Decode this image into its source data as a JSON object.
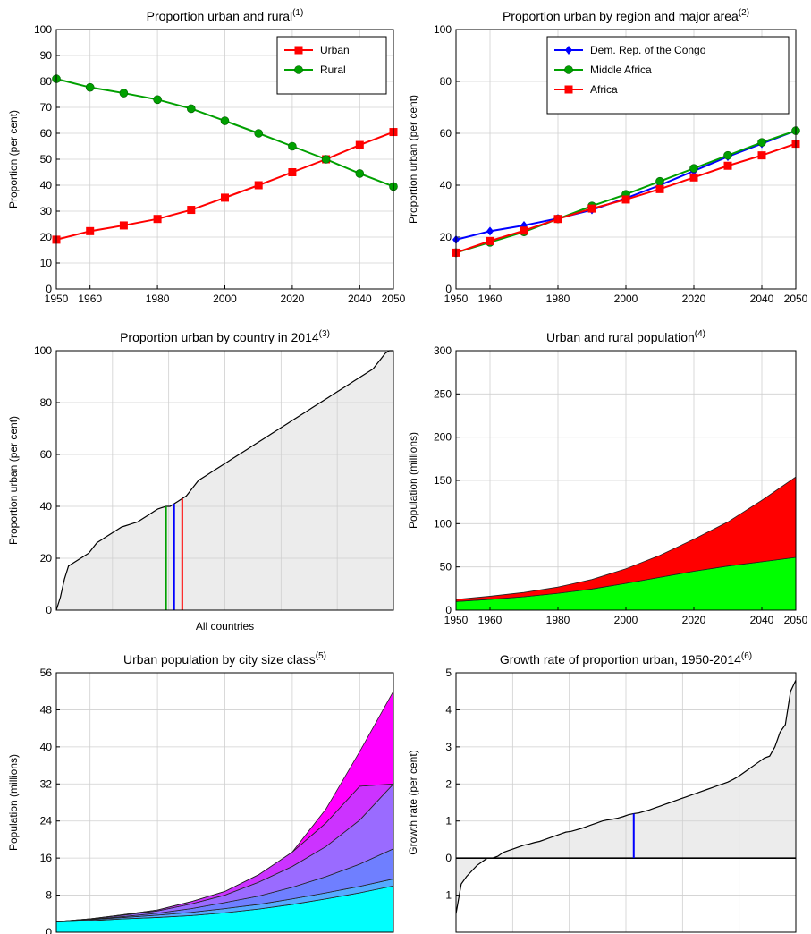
{
  "colors": {
    "urban": "#ff0000",
    "rural": "#00a000",
    "drc": "#0000ff",
    "middle_africa": "#00a000",
    "africa": "#ff0000",
    "area_rural": "#00ff00",
    "area_urban": "#ff0000",
    "area_gray": "#ececec",
    "size_classes": [
      "#00ffff",
      "#55aaff",
      "#6f7fff",
      "#9a6bff",
      "#cc33ff",
      "#ff00ff"
    ]
  },
  "chart_data": [
    {
      "id": "c1",
      "type": "line",
      "title": "Proportion urban and rural",
      "title_sup": "(1)",
      "xlabel": "",
      "ylabel": "Proportion (per cent)",
      "xlim": [
        1950,
        2050
      ],
      "ylim": [
        0,
        100
      ],
      "xticks": [
        1950,
        1960,
        1980,
        2000,
        2020,
        2040,
        2050
      ],
      "yticks": [
        0,
        10,
        20,
        30,
        40,
        50,
        60,
        70,
        80,
        90,
        100
      ],
      "grid": true,
      "legend": "top-right",
      "x": [
        1950,
        1960,
        1970,
        1980,
        1990,
        2000,
        2010,
        2020,
        2030,
        2040,
        2050
      ],
      "series": [
        {
          "name": "Urban",
          "color": "#ff0000",
          "marker": "square",
          "values": [
            19,
            22.3,
            24.5,
            27,
            30.5,
            35.2,
            40,
            45,
            50,
            55.5,
            60.5
          ]
        },
        {
          "name": "Rural",
          "color": "#00a000",
          "marker": "circle",
          "values": [
            81,
            77.7,
            75.5,
            73,
            69.5,
            64.8,
            60,
            55,
            50,
            44.5,
            39.5
          ]
        }
      ]
    },
    {
      "id": "c2",
      "type": "line",
      "title": "Proportion urban by region and major area",
      "title_sup": "(2)",
      "xlabel": "",
      "ylabel": "Proportion urban (per cent)",
      "xlim": [
        1950,
        2050
      ],
      "ylim": [
        0,
        100
      ],
      "xticks": [
        1950,
        1960,
        1980,
        2000,
        2020,
        2040,
        2050
      ],
      "yticks": [
        0,
        20,
        40,
        60,
        80,
        100
      ],
      "grid": true,
      "legend": "top-right",
      "x": [
        1950,
        1960,
        1970,
        1980,
        1990,
        2000,
        2010,
        2020,
        2030,
        2040,
        2050
      ],
      "series": [
        {
          "name": "Dem. Rep. of the Congo",
          "color": "#0000ff",
          "marker": "diamond",
          "values": [
            19,
            22.3,
            24.5,
            27.2,
            30.5,
            35,
            40,
            45.5,
            51,
            56,
            61
          ]
        },
        {
          "name": "Middle Africa",
          "color": "#00a000",
          "marker": "circle",
          "values": [
            14,
            18,
            22,
            27,
            32,
            36.5,
            41.5,
            46.5,
            51.5,
            56.5,
            61
          ]
        },
        {
          "name": "Africa",
          "color": "#ff0000",
          "marker": "square",
          "values": [
            14,
            18.5,
            22.5,
            27,
            31,
            34.5,
            38.5,
            43,
            47.5,
            51.5,
            56
          ]
        }
      ]
    },
    {
      "id": "c3",
      "type": "area",
      "title": "Proportion urban by country in 2014",
      "title_sup": "(3)",
      "xlabel": "All countries",
      "ylabel": "Proportion urban (per cent)",
      "ylim": [
        0,
        100
      ],
      "yticks": [
        0,
        20,
        40,
        60,
        80,
        100
      ],
      "grid": true,
      "profile": [
        0,
        5,
        12,
        17,
        18,
        19,
        20,
        21,
        22,
        24,
        26,
        27,
        28,
        29,
        30,
        31,
        32,
        32.5,
        33,
        33.5,
        34,
        35,
        36,
        37,
        38,
        39,
        39.5,
        40,
        40,
        41,
        42,
        43,
        44,
        46,
        48,
        50,
        51,
        52,
        53,
        54,
        55,
        56,
        57,
        58,
        59,
        60,
        61,
        62,
        63,
        64,
        65,
        66,
        67,
        68,
        69,
        70,
        71,
        72,
        73,
        74,
        75,
        76,
        77,
        78,
        79,
        80,
        81,
        82,
        83,
        84,
        85,
        86,
        87,
        88,
        89,
        90,
        91,
        92,
        93,
        95,
        97,
        99,
        100,
        100
      ],
      "markers": [
        {
          "label": "Middle Africa",
          "color": "#00a000",
          "index": 27,
          "value": 40
        },
        {
          "label": "Dem. Rep. of the Congo",
          "color": "#0000ff",
          "index": 29,
          "value": 41
        },
        {
          "label": "Africa",
          "color": "#ff0000",
          "index": 31,
          "value": 43
        }
      ]
    },
    {
      "id": "c4",
      "type": "area",
      "title": "Urban and rural population",
      "title_sup": "(4)",
      "xlabel": "",
      "ylabel": "Population (millions)",
      "xlim": [
        1950,
        2050
      ],
      "ylim": [
        0,
        300
      ],
      "xticks": [
        1950,
        1960,
        1980,
        2000,
        2020,
        2040,
        2050
      ],
      "yticks": [
        0,
        50,
        100,
        150,
        200,
        250,
        300
      ],
      "grid": true,
      "x": [
        1950,
        1960,
        1970,
        1980,
        1990,
        2000,
        2010,
        2020,
        2030,
        2040,
        2050
      ],
      "series": [
        {
          "name": "Rural",
          "color": "#00ff00",
          "values": [
            10,
            12.5,
            15.5,
            19.5,
            24.5,
            31,
            38,
            45,
            51,
            56,
            61
          ]
        },
        {
          "name": "Urban",
          "color": "#ff0000",
          "values": [
            2.4,
            3.6,
            5,
            7.2,
            11,
            16.9,
            25.4,
            37,
            51,
            71,
            93
          ]
        }
      ]
    },
    {
      "id": "c5",
      "type": "area",
      "title": "Urban population by city size class",
      "title_sup": "(5)",
      "xlabel": "",
      "ylabel": "Population (millions)",
      "xlim": [
        1950,
        2050
      ],
      "ylim": [
        0,
        56
      ],
      "yticks": [
        0,
        8,
        16,
        24,
        32,
        40,
        48,
        56
      ],
      "grid": true,
      "x": [
        1950,
        1960,
        1970,
        1980,
        1990,
        2000,
        2010,
        2020,
        2030,
        2040,
        2050
      ],
      "series": [
        {
          "name": "",
          "color": "#00ffff",
          "values": [
            2.2,
            2.5,
            2.9,
            3.2,
            3.6,
            4.2,
            5,
            6,
            7.2,
            8.5,
            10
          ]
        },
        {
          "name": "",
          "color": "#55aaff",
          "values": [
            0.1,
            0.2,
            0.3,
            0.5,
            0.7,
            0.9,
            1,
            1.2,
            1.3,
            1.4,
            1.5
          ]
        },
        {
          "name": "",
          "color": "#6f7fff",
          "values": [
            0,
            0.1,
            0.2,
            0.4,
            0.8,
            1.3,
            1.8,
            2.5,
            3.5,
            4.8,
            6.5
          ]
        },
        {
          "name": "",
          "color": "#9a6bff",
          "values": [
            0,
            0.1,
            0.3,
            0.5,
            1,
            1.6,
            3,
            4.5,
            6.5,
            9.5,
            14
          ]
        },
        {
          "name": "",
          "color": "#cc33ff",
          "values": [
            0,
            0,
            0.1,
            0.2,
            0.5,
            0.8,
            1.6,
            3.1,
            5.1,
            7.3,
            0
          ]
        },
        {
          "name": "",
          "color": "#ff00ff",
          "values": [
            0,
            0,
            0,
            0,
            0,
            0,
            0,
            0,
            3,
            7.5,
            20
          ]
        }
      ]
    },
    {
      "id": "c6",
      "type": "area",
      "title": "Growth rate of proportion urban, 1950-2014",
      "title_sup": "(6)",
      "xlabel": "",
      "ylabel": "Growth rate (per cent)",
      "ylim": [
        -2,
        5
      ],
      "yticks": [
        -1,
        0,
        1,
        2,
        3,
        4,
        5
      ],
      "grid": true,
      "profile": [
        -1.5,
        -0.7,
        -0.5,
        -0.35,
        -0.2,
        -0.1,
        0,
        0,
        0.05,
        0.15,
        0.2,
        0.25,
        0.3,
        0.35,
        0.38,
        0.42,
        0.45,
        0.5,
        0.55,
        0.6,
        0.65,
        0.7,
        0.72,
        0.76,
        0.8,
        0.85,
        0.9,
        0.95,
        1.0,
        1.03,
        1.05,
        1.08,
        1.12,
        1.17,
        1.2,
        1.22,
        1.26,
        1.3,
        1.35,
        1.4,
        1.45,
        1.5,
        1.55,
        1.6,
        1.65,
        1.7,
        1.75,
        1.8,
        1.85,
        1.9,
        1.95,
        2.0,
        2.05,
        2.12,
        2.2,
        2.3,
        2.4,
        2.5,
        2.6,
        2.7,
        2.75,
        3.0,
        3.4,
        3.6,
        4.5,
        4.8
      ],
      "markers": [
        {
          "label": "Dem. Rep. of the Congo",
          "color": "#0000ff",
          "index": 34,
          "value": 1.2
        }
      ]
    }
  ]
}
